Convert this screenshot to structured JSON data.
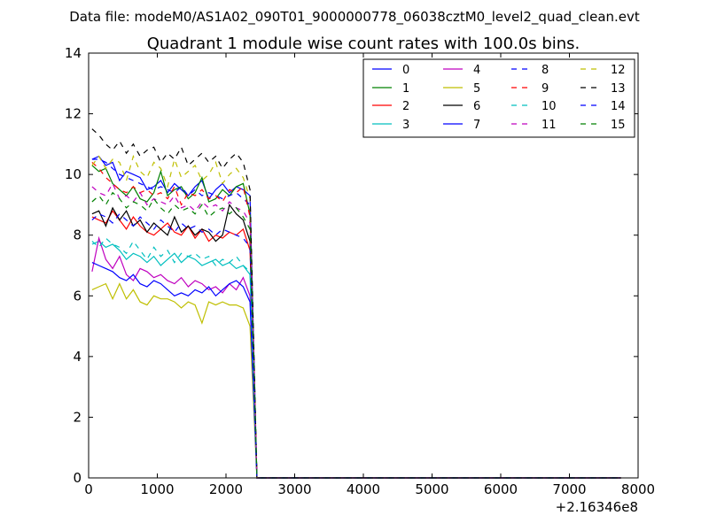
{
  "chart_data": {
    "type": "line",
    "suptitle": "Data file: modeM0/AS1A02_090T01_9000000778_06038cztM0_level2_quad_clean.evt",
    "title": "Quadrant 1 module wise count rates with 100.0s bins.",
    "xlabel": "",
    "ylabel": "",
    "xlim": [
      0,
      8000
    ],
    "ylim": [
      0,
      14
    ],
    "x_offset_label": "+2.16346e8",
    "xticks": [
      0,
      1000,
      2000,
      3000,
      4000,
      5000,
      6000,
      7000,
      8000
    ],
    "yticks": [
      0,
      2,
      4,
      6,
      8,
      10,
      12,
      14
    ],
    "grid": false,
    "legend_position": "top-right",
    "x": [
      50,
      150,
      250,
      350,
      450,
      550,
      650,
      750,
      850,
      950,
      1050,
      1150,
      1250,
      1350,
      1450,
      1550,
      1650,
      1750,
      1850,
      1950,
      2050,
      2150,
      2250,
      2350,
      2450,
      2550,
      4550,
      4650,
      4750,
      4850,
      4950,
      5050,
      5150,
      5250,
      5850,
      5950,
      6050,
      6150,
      6250,
      6350,
      6450,
      6550,
      6650,
      6750,
      6850,
      6950,
      7050,
      7150,
      7250,
      7350,
      7450,
      7550,
      7650,
      7750
    ],
    "series": [
      {
        "name": "0",
        "color": "#0000ff",
        "dash": "solid",
        "values": [
          10.5,
          10.6,
          10.3,
          10.4,
          9.8,
          10.1,
          10,
          9.9,
          9.5,
          9.6,
          9.8,
          9.4,
          9.7,
          9.5,
          9.3,
          9.6,
          9.8,
          9.2,
          9.5,
          9.7,
          9.4,
          9.6,
          9.5,
          9.3,
          0,
          0,
          0,
          0,
          0,
          0,
          0,
          0,
          0,
          0,
          0,
          0,
          0,
          0,
          0,
          0,
          0,
          0,
          0,
          0,
          0,
          0,
          0,
          0,
          0,
          0,
          0,
          0,
          0,
          0
        ]
      },
      {
        "name": "1",
        "color": "#008000",
        "dash": "solid",
        "values": [
          10.3,
          10.1,
          10.2,
          9.7,
          9.5,
          9.3,
          9.6,
          9.2,
          9.1,
          9.4,
          10.1,
          9.3,
          9.5,
          9.6,
          9.2,
          9.4,
          9.9,
          9.1,
          9.2,
          9.5,
          9.3,
          9.6,
          9.7,
          8.7,
          0,
          0,
          0,
          0,
          0,
          0,
          0,
          0,
          0,
          0,
          0,
          0,
          0,
          0,
          0,
          0,
          0,
          0,
          0,
          0,
          0,
          0,
          0,
          0,
          0,
          0,
          0,
          0,
          0,
          0
        ]
      },
      {
        "name": "2",
        "color": "#ff0000",
        "dash": "solid",
        "values": [
          8.6,
          8.5,
          8.4,
          8.8,
          8.5,
          8.2,
          8.6,
          8.3,
          8.1,
          8.0,
          8.2,
          8.4,
          8.1,
          8.0,
          8.3,
          7.9,
          8.2,
          7.8,
          8.0,
          7.9,
          8.1,
          8.0,
          8.2,
          7.5,
          0,
          0,
          0,
          0,
          0,
          0,
          0,
          0,
          0,
          0,
          0,
          0,
          0,
          0,
          0,
          0,
          0,
          0,
          0,
          0,
          0,
          0,
          0,
          0,
          0,
          0,
          0,
          0,
          0,
          0
        ]
      },
      {
        "name": "3",
        "color": "#00bfbf",
        "dash": "solid",
        "values": [
          7.7,
          7.8,
          7.6,
          7.7,
          7.5,
          7.2,
          7.4,
          7.3,
          7.1,
          7.3,
          7.0,
          7.2,
          7.4,
          7.1,
          7.3,
          7.2,
          7.0,
          7.1,
          7.2,
          7.0,
          7.1,
          6.9,
          7.0,
          6.7,
          0,
          0,
          0,
          0,
          0,
          0,
          0,
          0,
          0,
          0,
          0,
          0,
          0,
          0,
          0,
          0,
          0,
          0,
          0,
          0,
          0,
          0,
          0,
          0,
          0,
          0,
          0,
          0,
          0,
          0
        ]
      },
      {
        "name": "4",
        "color": "#bf00bf",
        "dash": "solid",
        "values": [
          6.8,
          7.9,
          7.2,
          6.9,
          7.3,
          6.7,
          6.5,
          6.9,
          6.8,
          6.6,
          6.7,
          6.5,
          6.4,
          6.6,
          6.3,
          6.5,
          6.4,
          6.2,
          6.3,
          6.1,
          6.4,
          6.2,
          6.6,
          6.0,
          0,
          0,
          0,
          0,
          0,
          0,
          0,
          0,
          0,
          0,
          0,
          0,
          0,
          0,
          0,
          0,
          0,
          0,
          0,
          0,
          0,
          0,
          0,
          0,
          0,
          0,
          0,
          0,
          0,
          0
        ]
      },
      {
        "name": "5",
        "color": "#bfbf00",
        "dash": "solid",
        "values": [
          6.2,
          6.3,
          6.4,
          5.9,
          6.4,
          5.9,
          6.2,
          5.8,
          5.7,
          6.0,
          5.9,
          5.9,
          5.8,
          5.6,
          5.8,
          5.7,
          5.1,
          5.8,
          5.7,
          5.8,
          5.7,
          5.7,
          5.6,
          5.0,
          0,
          0,
          0,
          0,
          0,
          0,
          0,
          0,
          0,
          0,
          0,
          0,
          0,
          0,
          0,
          0,
          0,
          0,
          0,
          0,
          0,
          0,
          0,
          0,
          0,
          0,
          0,
          0,
          0,
          0
        ]
      },
      {
        "name": "6",
        "color": "#000000",
        "dash": "solid",
        "values": [
          8.7,
          8.8,
          8.3,
          8.9,
          8.5,
          8.8,
          8.3,
          8.5,
          8.1,
          8.4,
          8.2,
          8.0,
          8.6,
          8.1,
          8.3,
          8.0,
          8.2,
          8.1,
          7.8,
          8.0,
          9.0,
          8.7,
          8.5,
          7.8,
          0,
          0,
          0,
          0,
          0,
          0,
          0,
          0,
          0,
          0,
          0,
          0,
          0,
          0,
          0,
          0,
          0,
          0,
          0,
          0,
          0,
          0,
          0,
          0,
          0,
          0,
          0,
          0,
          0,
          0
        ]
      },
      {
        "name": "7",
        "color": "#0000ff",
        "dash": "solid",
        "values": [
          7.1,
          7.0,
          6.9,
          6.8,
          6.6,
          6.5,
          6.7,
          6.4,
          6.3,
          6.5,
          6.4,
          6.2,
          6.0,
          6.1,
          6.0,
          6.2,
          6.1,
          6.3,
          6.0,
          6.2,
          6.4,
          6.5,
          6.3,
          5.8,
          0,
          0,
          0,
          0,
          0,
          0,
          0,
          0,
          0,
          0,
          0,
          0,
          0,
          0,
          0,
          0,
          0,
          0,
          0,
          0,
          0,
          0,
          0,
          0,
          0,
          0,
          0,
          0,
          0,
          0
        ]
      },
      {
        "name": "8",
        "color": "#0000ff",
        "dash": "dashed",
        "values": [
          10.5,
          10.5,
          10.4,
          10.2,
          10.0,
          9.9,
          9.8,
          9.7,
          9.6,
          9.5,
          9.6,
          9.5,
          9.4,
          9.6,
          9.3,
          9.5,
          9.3,
          9.4,
          9.3,
          9.2,
          9.3,
          9.4,
          9.2,
          9.0,
          0,
          0,
          0,
          0,
          0,
          0,
          0,
          0,
          0,
          0,
          0,
          0,
          0,
          0,
          0,
          0,
          0,
          0,
          0,
          0,
          0,
          0,
          0,
          0,
          0,
          0,
          0,
          0,
          0,
          0
        ]
      },
      {
        "name": "9",
        "color": "#ff0000",
        "dash": "dashed",
        "values": [
          10.4,
          10.2,
          9.9,
          9.7,
          9.5,
          9.4,
          9.6,
          9.4,
          9.5,
          9.3,
          9.4,
          9.2,
          9.6,
          9.0,
          9.4,
          9.3,
          9.5,
          9.2,
          9.3,
          9.1,
          9.5,
          9.4,
          9.6,
          8.6,
          0,
          0,
          0,
          0,
          0,
          0,
          0,
          0,
          0,
          0,
          0,
          0,
          0,
          0,
          0,
          0,
          0,
          0,
          0,
          0,
          0,
          0,
          0,
          0,
          0,
          0,
          0,
          0,
          0,
          0
        ]
      },
      {
        "name": "10",
        "color": "#00bfbf",
        "dash": "dashed",
        "values": [
          7.8,
          7.6,
          7.9,
          7.7,
          7.6,
          7.4,
          7.8,
          7.5,
          7.2,
          7.6,
          7.3,
          7.5,
          7.1,
          7.4,
          7.3,
          7.4,
          7.2,
          7.3,
          7.0,
          7.2,
          7.1,
          7.3,
          7.0,
          6.8,
          0,
          0,
          0,
          0,
          0,
          0,
          0,
          0,
          0,
          0,
          0,
          0,
          0,
          0,
          0,
          0,
          0,
          0,
          0,
          0,
          0,
          0,
          0,
          0,
          0,
          0,
          0,
          0,
          0,
          0
        ]
      },
      {
        "name": "11",
        "color": "#bf00bf",
        "dash": "dashed",
        "values": [
          9.6,
          9.4,
          9.3,
          9.7,
          9.2,
          9.3,
          9.1,
          9.4,
          9.0,
          9.2,
          9.1,
          9.0,
          9.3,
          8.9,
          9.0,
          8.8,
          9.1,
          8.9,
          9.0,
          8.8,
          9.1,
          8.9,
          8.8,
          8.4,
          0,
          0,
          0,
          0,
          0,
          0,
          0,
          0,
          0,
          0,
          0,
          0,
          0,
          0,
          0,
          0,
          0,
          0,
          0,
          0,
          0,
          0,
          0,
          0,
          0,
          0,
          0,
          0,
          0,
          0
        ]
      },
      {
        "name": "12",
        "color": "#bfbf00",
        "dash": "dashed",
        "values": [
          10.3,
          10.6,
          10.2,
          10.5,
          10.4,
          9.8,
          10.6,
          10.1,
          9.9,
          10.4,
          10.2,
          9.6,
          10.5,
          9.9,
          10.1,
          10.3,
          9.8,
          10.0,
          10.4,
          9.7,
          10.0,
          10.2,
          9.9,
          9.2,
          0,
          0,
          0,
          0,
          0,
          0,
          0,
          0,
          0,
          0,
          0,
          0,
          0,
          0,
          0,
          0,
          0,
          0,
          0,
          0,
          0,
          0,
          0,
          0,
          0,
          0,
          0,
          0,
          0,
          0
        ]
      },
      {
        "name": "13",
        "color": "#000000",
        "dash": "dashed",
        "values": [
          11.5,
          11.3,
          11.0,
          10.8,
          11.1,
          10.7,
          11.0,
          10.6,
          10.8,
          10.9,
          10.4,
          10.7,
          10.5,
          10.9,
          10.3,
          10.5,
          10.7,
          10.4,
          10.6,
          10.2,
          10.5,
          10.7,
          10.4,
          9.5,
          0,
          0,
          0,
          0,
          0,
          0,
          0,
          0,
          0,
          0,
          0,
          0,
          0,
          0,
          0,
          0,
          0,
          0,
          0,
          0,
          0,
          0,
          0,
          0,
          0,
          0,
          0,
          0,
          0,
          0
        ]
      },
      {
        "name": "14",
        "color": "#0000ff",
        "dash": "dashed",
        "values": [
          8.5,
          8.7,
          8.6,
          8.4,
          8.7,
          8.5,
          8.3,
          8.6,
          8.4,
          8.2,
          8.5,
          8.3,
          8.1,
          8.4,
          8.2,
          8.3,
          8.1,
          8.2,
          8.0,
          8.2,
          8.1,
          8.0,
          7.9,
          7.6,
          0,
          0,
          0,
          0,
          0,
          0,
          0,
          0,
          0,
          0,
          0,
          0,
          0,
          0,
          0,
          0,
          0,
          0,
          0,
          0,
          0,
          0,
          0,
          0,
          0,
          0,
          0,
          0,
          0,
          0
        ]
      },
      {
        "name": "15",
        "color": "#008000",
        "dash": "dashed",
        "values": [
          9.1,
          9.3,
          9.0,
          9.4,
          9.2,
          8.9,
          9.1,
          9.0,
          8.8,
          9.2,
          8.9,
          8.7,
          9.0,
          8.8,
          8.9,
          8.7,
          9.0,
          8.6,
          8.8,
          8.9,
          8.7,
          8.9,
          8.6,
          8.2,
          0,
          0,
          0,
          0,
          0,
          0,
          0,
          0,
          0,
          0,
          0,
          0,
          0,
          0,
          0,
          0,
          0,
          0,
          0,
          0,
          0,
          0,
          0,
          0,
          0,
          0,
          0,
          0,
          0,
          0
        ]
      }
    ]
  }
}
